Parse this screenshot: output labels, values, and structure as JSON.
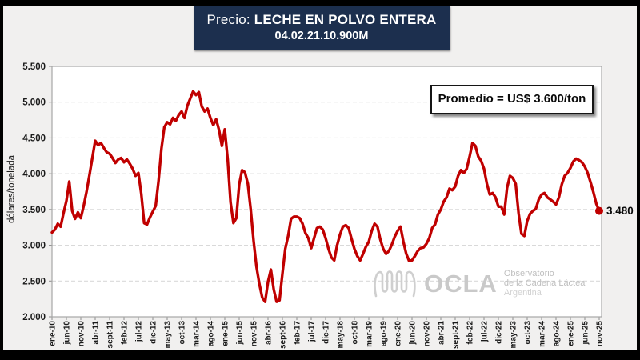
{
  "header": {
    "prefix": "Precio: ",
    "title": "LECHE EN POLVO ENTERA",
    "subtitle": "04.02.21.10.900M"
  },
  "annotation": {
    "text": "Promedio = US$ 3.600/ton"
  },
  "end_label": "3.480",
  "watermark": {
    "name": "OCLA",
    "line1": "Observatorio",
    "line2": "de la Cadena Láctea",
    "line3": "Argentina"
  },
  "colors": {
    "line": "#c00000",
    "title_bg": "#1c2f4e",
    "background": "#f1f0ef",
    "grid": "#d9d9d9",
    "plot_border": "#a6a6a6",
    "watermark": "#cccccc",
    "text": "#1a1a1a"
  },
  "chart_data": {
    "type": "line",
    "title": "Precio: LECHE EN POLVO ENTERA",
    "subtitle": "04.02.21.10.900M",
    "ylabel": "dólares/tonelada",
    "xlabel": "",
    "ylim": [
      2000,
      5500
    ],
    "y_tick_step": 500,
    "y_ticks": [
      "5.500",
      "5.000",
      "4.500",
      "4.000",
      "3.500",
      "3.000",
      "2.500",
      "2.000"
    ],
    "grid": "dashed horizontal",
    "legend": "none",
    "x_start": "ene-10",
    "x_end": "nov-25",
    "frequency": "monthly",
    "x_tick_interval": 5,
    "x_tick_labels": [
      "ene-10",
      "jun-10",
      "nov-10",
      "abr-11",
      "sept-11",
      "feb-12",
      "jul-12",
      "dic-12",
      "may-13",
      "oct-13",
      "mar-14",
      "ago-14",
      "ene-15",
      "jun-15",
      "nov-15",
      "abr-16",
      "sept-16",
      "feb-17",
      "jul-17",
      "dic-17",
      "may-18",
      "oct-18",
      "mar-19",
      "ago-19",
      "ene-20",
      "jun-20",
      "nov-20",
      "abr-21",
      "sept-21",
      "feb-22",
      "jul-22",
      "dic-22",
      "may-23",
      "oct-23",
      "mar-24",
      "ago-24",
      "ene-25",
      "jun-25",
      "nov-25"
    ],
    "series": [
      {
        "name": "Precio leche en polvo entera (US$/ton)",
        "color": "#c00000",
        "values": [
          3180,
          3220,
          3300,
          3260,
          3450,
          3620,
          3890,
          3480,
          3370,
          3460,
          3380,
          3550,
          3750,
          3980,
          4220,
          4460,
          4400,
          4430,
          4360,
          4300,
          4280,
          4220,
          4150,
          4200,
          4220,
          4160,
          4200,
          4140,
          4070,
          3970,
          4010,
          3720,
          3310,
          3290,
          3390,
          3470,
          3550,
          3900,
          4350,
          4650,
          4720,
          4690,
          4780,
          4740,
          4820,
          4870,
          4780,
          4950,
          5050,
          5150,
          5100,
          5140,
          4940,
          4870,
          4910,
          4780,
          4680,
          4760,
          4610,
          4390,
          4620,
          4200,
          3600,
          3310,
          3380,
          3850,
          4050,
          4020,
          3860,
          3500,
          3060,
          2700,
          2460,
          2270,
          2210,
          2490,
          2660,
          2380,
          2210,
          2230,
          2600,
          2950,
          3130,
          3370,
          3400,
          3400,
          3380,
          3300,
          3170,
          3100,
          2960,
          3100,
          3240,
          3260,
          3220,
          3100,
          2950,
          2830,
          2790,
          3000,
          3150,
          3260,
          3280,
          3240,
          3090,
          2950,
          2850,
          2790,
          2880,
          2980,
          3050,
          3200,
          3300,
          3260,
          3080,
          2950,
          2880,
          2920,
          3010,
          3120,
          3200,
          3260,
          3050,
          2880,
          2780,
          2790,
          2850,
          2920,
          2960,
          2970,
          3020,
          3100,
          3240,
          3290,
          3430,
          3500,
          3610,
          3670,
          3790,
          3770,
          3820,
          3970,
          4050,
          4010,
          4070,
          4240,
          4430,
          4390,
          4240,
          4180,
          4070,
          3860,
          3710,
          3730,
          3670,
          3540,
          3540,
          3430,
          3800,
          3970,
          3940,
          3860,
          3450,
          3160,
          3130,
          3340,
          3440,
          3480,
          3510,
          3640,
          3710,
          3730,
          3670,
          3640,
          3610,
          3570,
          3670,
          3850,
          3970,
          4010,
          4080,
          4170,
          4210,
          4190,
          4160,
          4100,
          4010,
          3880,
          3740,
          3580,
          3480
        ]
      }
    ],
    "average_value": 3600,
    "average_label": "Promedio = US$ 3.600/ton",
    "last_point": {
      "month": "nov-25",
      "value": 3480,
      "label": "3.480"
    }
  }
}
